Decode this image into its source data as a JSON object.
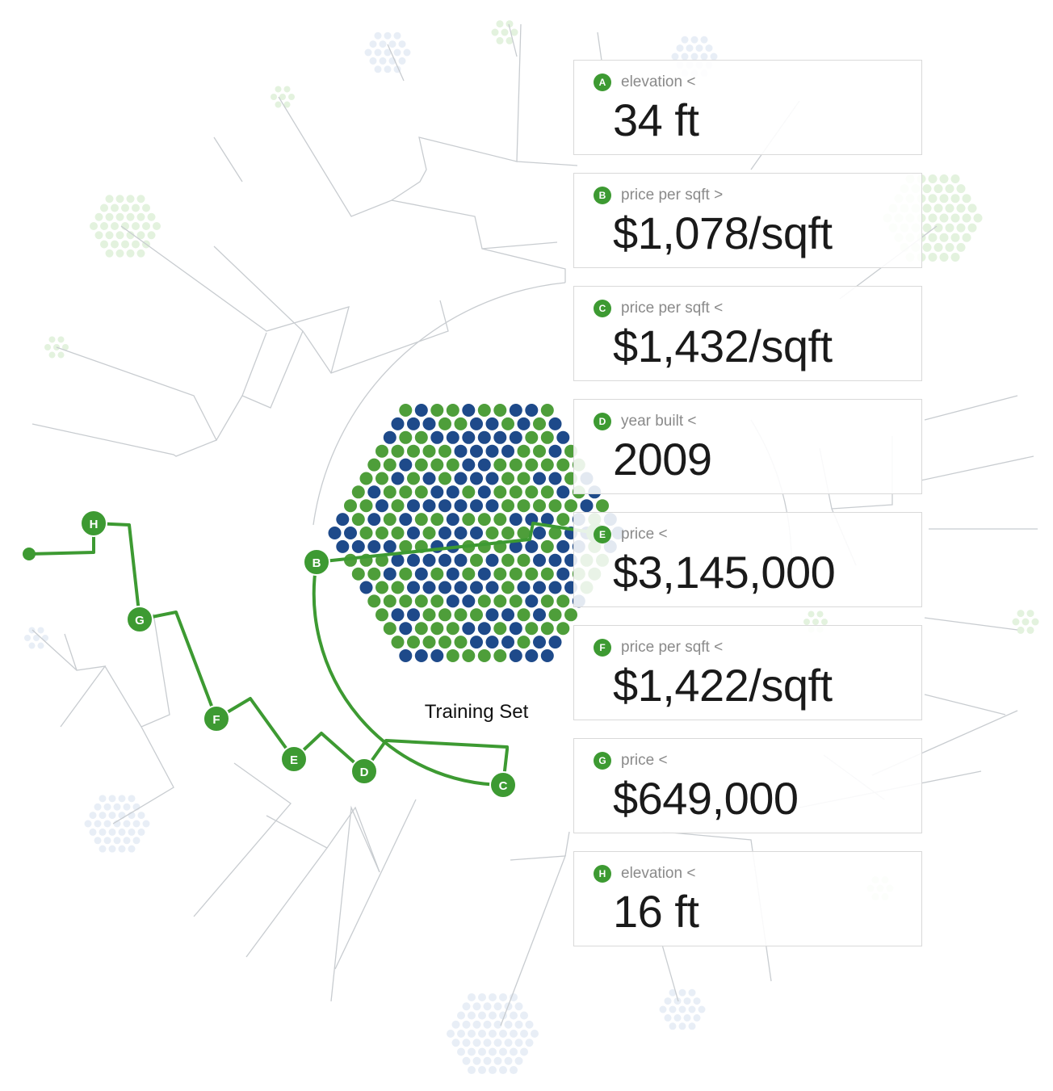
{
  "colors": {
    "path": "#3d9a32",
    "positive": "#4e9e3a",
    "negative": "#1e4a8a",
    "branch": "#c8ccd0",
    "faint_green": "#e3f2de",
    "faint_blue": "#e8eef6"
  },
  "training_label": "Training Set",
  "path_nodes": [
    {
      "id": "B",
      "label": "B"
    },
    {
      "id": "C",
      "label": "C"
    },
    {
      "id": "D",
      "label": "D"
    },
    {
      "id": "E",
      "label": "E"
    },
    {
      "id": "F",
      "label": "F"
    },
    {
      "id": "G",
      "label": "G"
    },
    {
      "id": "H",
      "label": "H"
    }
  ],
  "cards": [
    {
      "badge": "A",
      "rule": "elevation <",
      "value": "34 ft"
    },
    {
      "badge": "B",
      "rule": "price per sqft >",
      "value": "$1,078/sqft"
    },
    {
      "badge": "C",
      "rule": "price per sqft <",
      "value": "$1,432/sqft"
    },
    {
      "badge": "D",
      "rule": "year built <",
      "value": "2009"
    },
    {
      "badge": "E",
      "rule": "price <",
      "value": "$3,145,000"
    },
    {
      "badge": "F",
      "rule": "price per sqft <",
      "value": "$1,422/sqft"
    },
    {
      "badge": "G",
      "rule": "price <",
      "value": "$649,000"
    },
    {
      "badge": "H",
      "rule": "elevation <",
      "value": "16 ft"
    }
  ]
}
